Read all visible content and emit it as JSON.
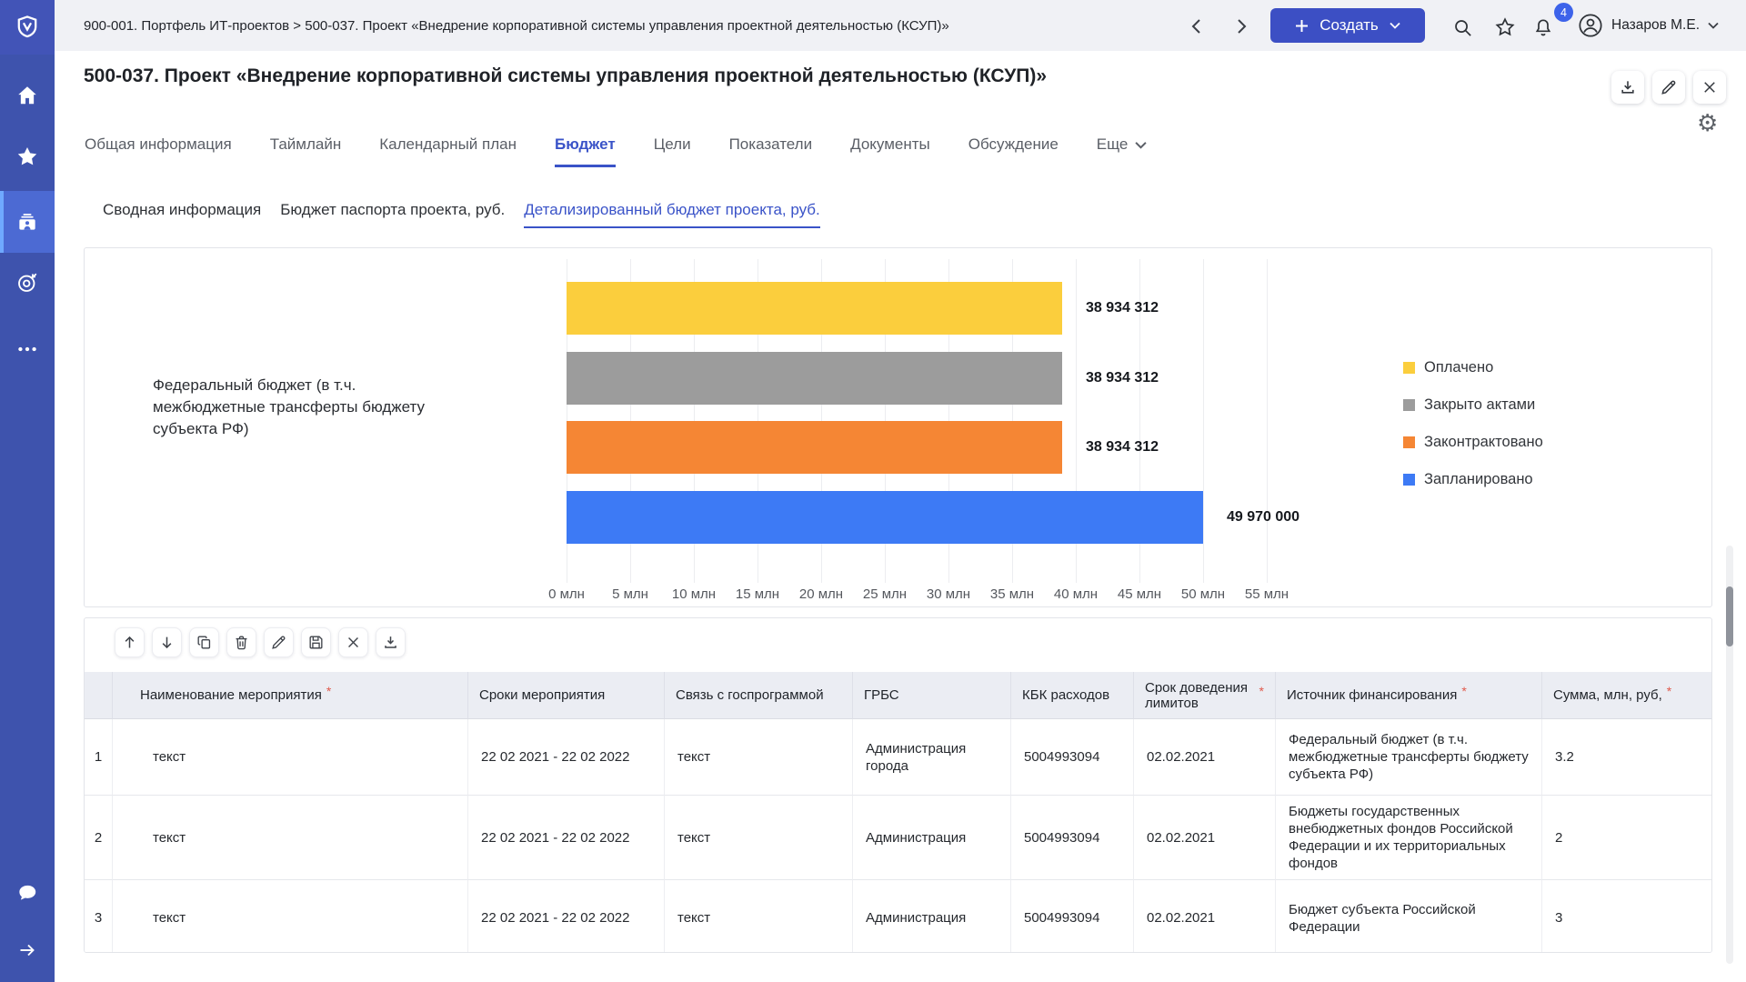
{
  "sidebar": {
    "icons": [
      "shield-logo",
      "home",
      "favorites-star",
      "projects",
      "goals-target",
      "more-ellipsis",
      "chat",
      "expand-arrow"
    ],
    "active_item": "projects"
  },
  "topbar": {
    "breadcrumb": "900-001. Портфель ИТ-проектов > 500-037. Проект «Внедрение корпоративной системы управления проектной деятельностью (КСУП)»",
    "create_button": {
      "label": "Создать"
    },
    "icons": [
      "back-chevron",
      "forward-chevron",
      "search",
      "favorites-star",
      "notifications-bell",
      "user-avatar"
    ],
    "notifications_badge": "4",
    "user": {
      "name": "Назаров М.Е."
    }
  },
  "page": {
    "title": "500-037. Проект «Внедрение корпоративной системы управления проектной деятельностью (КСУП)»",
    "title_actions": [
      "download",
      "edit",
      "close"
    ],
    "settings_icon": "gear",
    "tabs": [
      {
        "label": "Общая информация"
      },
      {
        "label": "Таймлайн"
      },
      {
        "label": "Календарный план"
      },
      {
        "label": "Бюджет",
        "active": true
      },
      {
        "label": "Цели"
      },
      {
        "label": "Показатели"
      },
      {
        "label": "Документы"
      },
      {
        "label": "Обсуждение"
      },
      {
        "label": "Еще",
        "chevron": true
      }
    ],
    "subtabs": [
      {
        "label": "Сводная информация"
      },
      {
        "label": "Бюджет паспорта проекта, руб."
      },
      {
        "label": "Детализированный бюджет проекта, руб.",
        "active": true
      }
    ]
  },
  "chart_data": {
    "type": "bar",
    "orientation": "horizontal",
    "category": "Федеральный бюджет (в т.ч. межбюджетные трансферты  бюджету субъекта РФ)",
    "series": [
      {
        "name": "Оплачено",
        "value": 38934312,
        "label": "38 934 312",
        "color": "#FBCE3D"
      },
      {
        "name": "Закрыто актами",
        "value": 38934312,
        "label": "38 934 312",
        "color": "#9C9C9C"
      },
      {
        "name": "Законтрактовано",
        "value": 38934312,
        "label": "38 934 312",
        "color": "#F58634"
      },
      {
        "name": "Запланировано",
        "value": 49970000,
        "label": "49 970 000",
        "color": "#3D7AF5"
      }
    ],
    "x_axis": {
      "ticks": [
        "0 млн",
        "5 млн",
        "10 млн",
        "15 млн",
        "20 млн",
        "25 млн",
        "30 млн",
        "35 млн",
        "40 млн",
        "45 млн",
        "50 млн",
        "55 млн"
      ],
      "max": 55000000
    },
    "legend_position": "right",
    "grid": "vertical"
  },
  "table": {
    "toolbar_icons": [
      "move-up",
      "move-down",
      "copy",
      "delete",
      "edit",
      "save",
      "cancel",
      "export"
    ],
    "columns": [
      {
        "label": "Наименование мероприятия",
        "required": true
      },
      {
        "label": "Сроки мероприятия"
      },
      {
        "label": "Связь  с госпрограммой"
      },
      {
        "label": "ГРБС"
      },
      {
        "label": "КБК расходов"
      },
      {
        "label": "Срок доведения лимитов",
        "required": true
      },
      {
        "label": "Источник финансирования",
        "required": true
      },
      {
        "label": "Сумма, млн, руб,",
        "required": true
      }
    ],
    "rows": [
      {
        "num": "1",
        "cells": [
          "текст",
          "22 02 2021 - 22 02 2022",
          "текст",
          "Администрация города",
          "5004993094",
          "02.02.2021",
          "Федеральный бюджет (в т.ч. межбюджетные трансферты бюджету субъекта РФ)",
          "3.2"
        ]
      },
      {
        "num": "2",
        "cells": [
          "текст",
          "22 02 2021 - 22 02 2022",
          "текст",
          "Администрация",
          "5004993094",
          "02.02.2021",
          "Бюджеты государственных внебюджетных фондов Российской Федерации и их территориальных фондов",
          "2"
        ]
      },
      {
        "num": "3",
        "cells": [
          "текст",
          "22 02 2021 - 22 02 2022",
          "текст",
          "Администрация",
          "5004993094",
          "02.02.2021",
          "Бюджет субъекта Российской Федерации",
          "3"
        ]
      }
    ]
  }
}
